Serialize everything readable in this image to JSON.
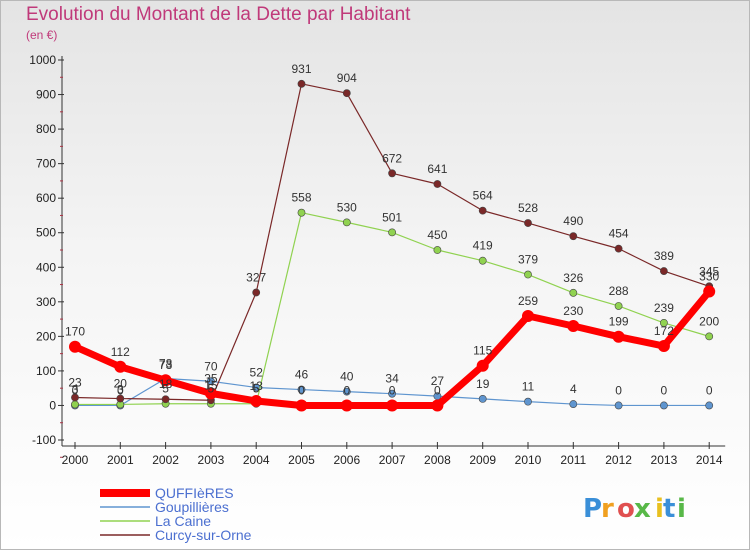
{
  "chart_data": {
    "type": "line",
    "title": "Evolution du Montant de la Dette par Habitant",
    "subtitle": "(en €)",
    "xlabel": "",
    "ylabel": "",
    "x": [
      "2000",
      "2001",
      "2002",
      "2003",
      "2004",
      "2005",
      "2006",
      "2007",
      "2008",
      "2009",
      "2010",
      "2011",
      "2012",
      "2013",
      "2014"
    ],
    "ylim": [
      -100,
      1000
    ],
    "yticks": [
      "-100",
      "0",
      "100",
      "200",
      "300",
      "400",
      "500",
      "600",
      "700",
      "800",
      "900",
      "1000"
    ],
    "grid": false,
    "legend_position": "bottom-left",
    "series": [
      {
        "name": "QUFFIèRES",
        "color": "#ff0000",
        "values": [
          170,
          112,
          73,
          35,
          13,
          0,
          0,
          0,
          0,
          115,
          259,
          230,
          199,
          172,
          330
        ],
        "labels": [
          "170",
          "112",
          "73",
          "35",
          "13",
          "0",
          "0",
          "0",
          "0",
          "115",
          "259",
          "230",
          "199",
          "172",
          "330"
        ]
      },
      {
        "name": "Goupillières",
        "color": "#5f95cf",
        "values": [
          0,
          0,
          78,
          70,
          52,
          46,
          40,
          34,
          27,
          19,
          11,
          4,
          0,
          0,
          0
        ],
        "labels": [
          "0",
          "0",
          "78",
          "70",
          "52",
          "46",
          "40",
          "34",
          "27",
          "19",
          "11",
          "4",
          "0",
          "0",
          "0"
        ]
      },
      {
        "name": "La Caine",
        "color": "#90d250",
        "values": [
          3,
          3,
          5,
          5,
          5,
          558,
          530,
          501,
          450,
          419,
          379,
          326,
          288,
          239,
          200
        ],
        "labels": [
          "3",
          "3",
          "5",
          "5",
          "5",
          "558",
          "530",
          "501",
          "450",
          "419",
          "379",
          "326",
          "288",
          "239",
          "200"
        ]
      },
      {
        "name": "Curcy-sur-Orne",
        "color": "#7a2828",
        "values": [
          23,
          20,
          18,
          15,
          327,
          931,
          904,
          672,
          641,
          564,
          528,
          490,
          454,
          389,
          345
        ],
        "labels": [
          "23",
          "20",
          "18",
          "15",
          "327",
          "931",
          "904",
          "672",
          "641",
          "564",
          "528",
          "490",
          "454",
          "389",
          "345"
        ]
      }
    ]
  },
  "logo": {
    "letters": [
      "P",
      "r",
      "o",
      "x",
      "i",
      "t",
      "i"
    ],
    "colors": [
      "#3a8fd8",
      "#f0a020",
      "#e05050",
      "#58b848",
      "#e8c020",
      "#3a8fd8",
      "#58b848"
    ]
  }
}
